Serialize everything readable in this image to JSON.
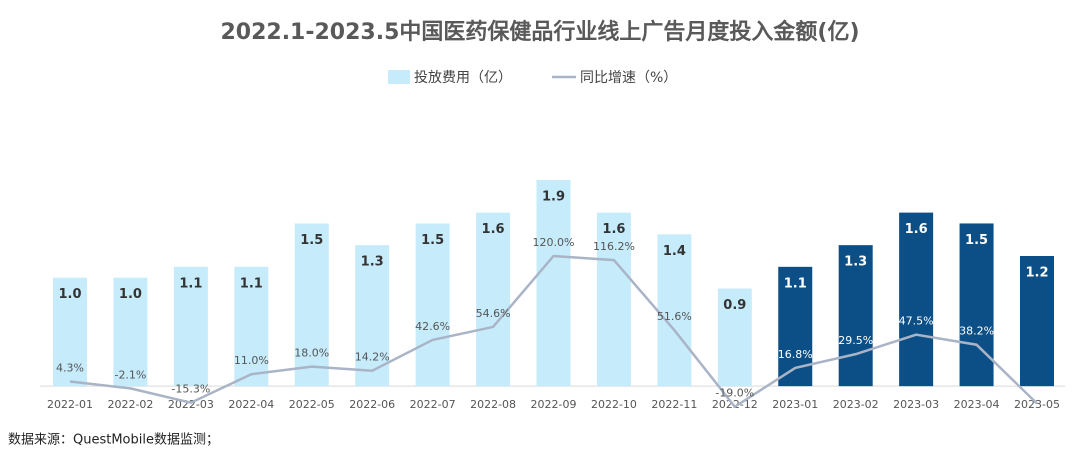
{
  "chart_data": {
    "type": "bar-line",
    "title": "2022.1-2023.5中国医药保健品行业线上广告月度投入金额(亿)",
    "source": "数据来源：QuestMobile数据监测；",
    "categories": [
      "2022-01",
      "2022-02",
      "2022-03",
      "2022-04",
      "2022-05",
      "2022-06",
      "2022-07",
      "2022-08",
      "2022-09",
      "2022-10",
      "2022-11",
      "2022-12",
      "2023-01",
      "2023-02",
      "2023-03",
      "2023-04",
      "2023-05"
    ],
    "ylim": [
      -0.22,
      2.5
    ],
    "y2lim": [
      -22,
      250
    ],
    "series": [
      {
        "name": "投放费用（亿）",
        "color": "#c6ecfb",
        "colors": [
          "#c6ecfb",
          "#c6ecfb",
          "#c6ecfb",
          "#c6ecfb",
          "#c6ecfb",
          "#c6ecfb",
          "#c6ecfb",
          "#c6ecfb",
          "#c6ecfb",
          "#c6ecfb",
          "#c6ecfb",
          "#c6ecfb",
          "#0b4f86",
          "#0b4f86",
          "#0b4f86",
          "#0b4f86",
          "#0b4f86"
        ],
        "values": [
          1.0,
          1.0,
          1.1,
          1.1,
          1.5,
          1.3,
          1.5,
          1.6,
          1.9,
          1.6,
          1.4,
          0.9,
          1.1,
          1.3,
          1.6,
          1.5,
          1.2
        ],
        "value_labels": [
          "1.0",
          "1.0",
          "1.1",
          "1.1",
          "1.5",
          "1.3",
          "1.5",
          "1.6",
          "1.9",
          "1.6",
          "1.4",
          "0.9",
          "1.1",
          "1.3",
          "1.6",
          "1.5",
          "1.2"
        ]
      },
      {
        "name": "同比增速（%）",
        "color": "#a9b4c6",
        "axis": "y2",
        "values": [
          4.3,
          -2.1,
          -15.3,
          11.0,
          18.0,
          14.2,
          42.6,
          54.6,
          120.0,
          116.2,
          51.6,
          -19.0,
          16.8,
          29.5,
          47.5,
          38.2,
          -16
        ],
        "value_labels": [
          "4.3%",
          "-2.1%",
          "-15.3%",
          "11.0%",
          "18.0%",
          "14.2%",
          "42.6%",
          "54.6%",
          "120.0%",
          "116.2%",
          "51.6%",
          "-19.0%",
          "16.8%",
          "29.5%",
          "47.5%",
          "38.2%",
          null
        ]
      }
    ]
  }
}
